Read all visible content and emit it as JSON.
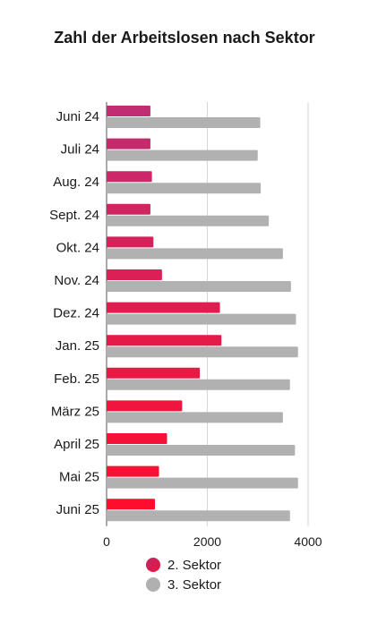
{
  "chart_data": {
    "type": "bar",
    "orientation": "horizontal",
    "title": "Zahl der Arbeitslosen nach Sektor",
    "categories": [
      "Juni 24",
      "Juli 24",
      "Aug. 24",
      "Sept. 24",
      "Okt. 24",
      "Nov. 24",
      "Dez. 24",
      "Jan. 25",
      "Feb. 25",
      "März 25",
      "April 25",
      "Mai 25",
      "Juni 25"
    ],
    "series": [
      {
        "name": "2. Sektor",
        "values": [
          870,
          870,
          900,
          870,
          930,
          1100,
          2250,
          2280,
          1850,
          1500,
          1200,
          1040,
          960
        ]
      },
      {
        "name": "3. Sektor",
        "values": [
          3050,
          3000,
          3060,
          3220,
          3500,
          3660,
          3760,
          3800,
          3640,
          3500,
          3740,
          3800,
          3640
        ]
      }
    ],
    "series_colors": {
      "2. Sektor": [
        "#bf2d72",
        "#ff0d2c"
      ],
      "3. Sektor": "#b1b1b1"
    },
    "xlim": [
      0,
      4000
    ],
    "xticks": [
      "0",
      "2000",
      "4000"
    ],
    "grid": "vertical",
    "legend": "bottom"
  }
}
